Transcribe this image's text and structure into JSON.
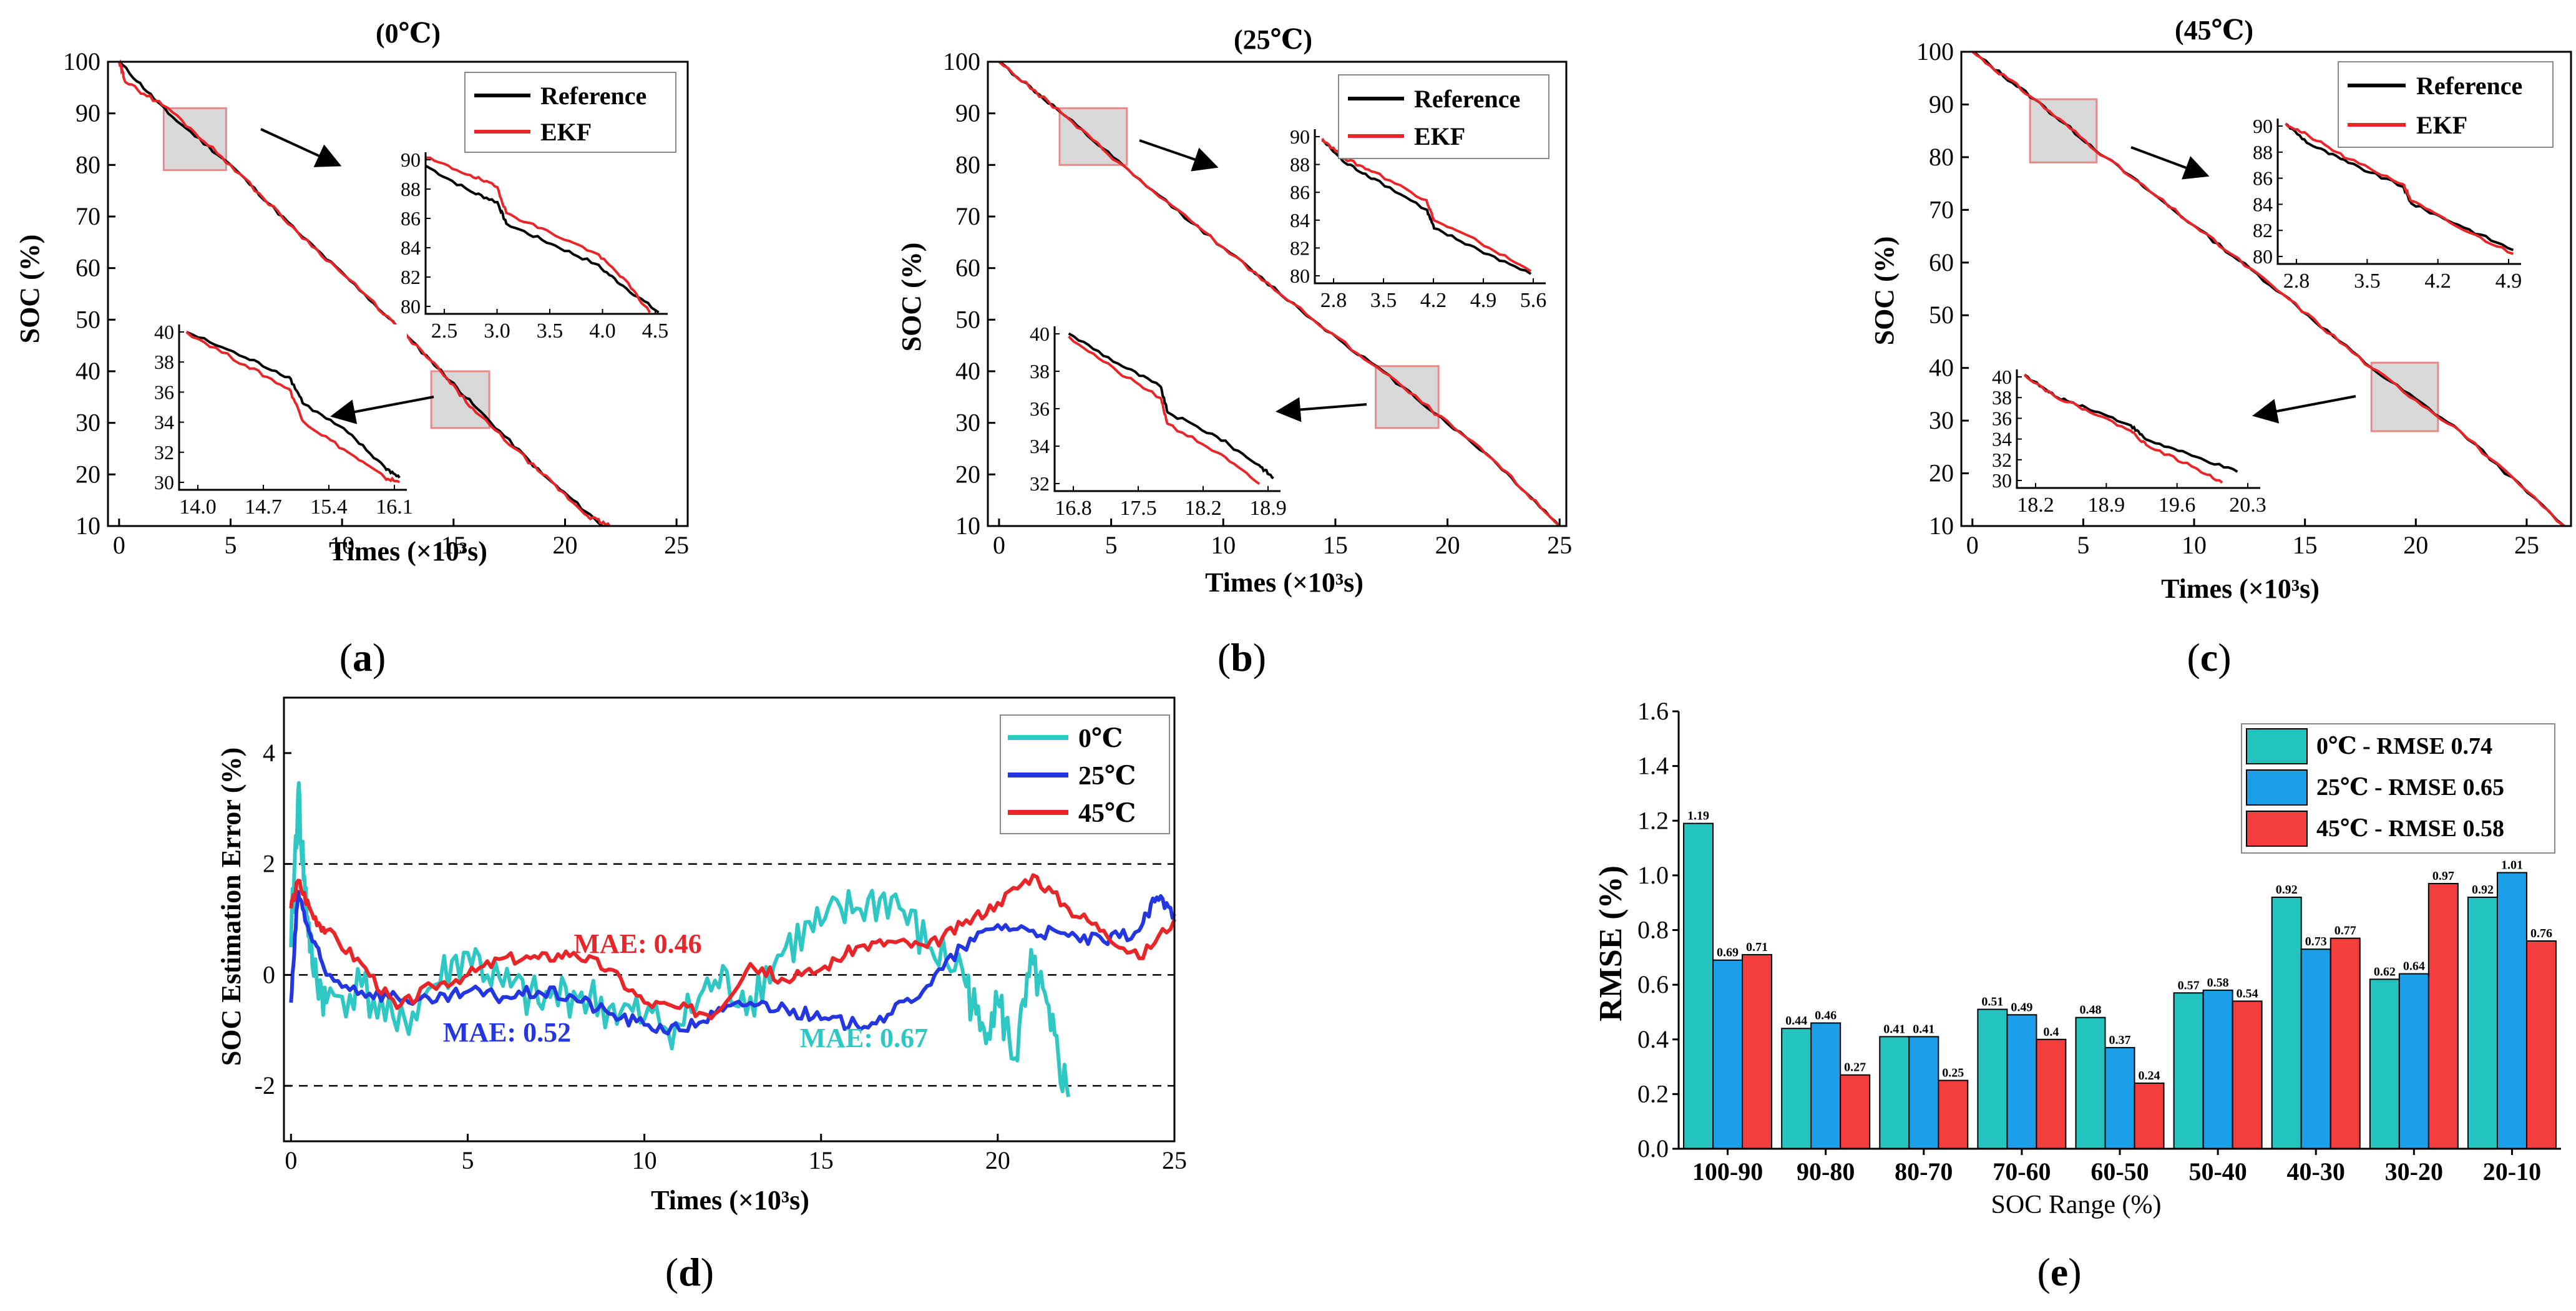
{
  "colors": {
    "reference": "#000000",
    "ekf": "#e8262a",
    "zero": "#2fc7c4",
    "twentyfive": "#2436e0",
    "fortyfive": "#e8262a",
    "bar0": "#25c3c0",
    "bar25": "#1a9fe8",
    "bar45": "#f43d3d",
    "box_fill": "#d8d8d8",
    "box_stroke": "#e88a8a"
  },
  "panels": {
    "a": {
      "label_open": "(",
      "letter": "a",
      "label_close": ")"
    },
    "b": {
      "label_open": "(",
      "letter": "b",
      "label_close": ")"
    },
    "c": {
      "label_open": "(",
      "letter": "c",
      "label_close": ")"
    },
    "d": {
      "label_open": "(",
      "letter": "d",
      "label_close": ")"
    },
    "e": {
      "label_open": "(",
      "letter": "e",
      "label_close": ")"
    }
  },
  "chart_data": [
    {
      "id": "a",
      "type": "line",
      "title": "(0℃)",
      "xlabel": "Times (×10³s)",
      "ylabel": "SOC (%)",
      "xlim": [
        -0.5,
        25.5
      ],
      "ylim": [
        10,
        100
      ],
      "xticks": [
        0,
        5,
        10,
        15,
        20,
        25
      ],
      "yticks": [
        10,
        20,
        30,
        40,
        50,
        60,
        70,
        80,
        90,
        100
      ],
      "series": [
        {
          "name": "Reference",
          "x": [
            0,
            2.2,
            5,
            8,
            11,
            14,
            16,
            19,
            21.7
          ],
          "y": [
            100,
            90,
            80,
            67,
            55,
            42,
            33,
            20,
            10
          ]
        },
        {
          "name": "EKF",
          "x": [
            0,
            0.3,
            2.2,
            5,
            8,
            11,
            14,
            16,
            19,
            21,
            22
          ],
          "y": [
            100,
            96,
            91,
            80,
            67,
            55,
            42,
            32,
            20,
            12,
            10
          ]
        }
      ],
      "zoom_boxes": [
        {
          "x": [
            2.0,
            4.8
          ],
          "y": [
            79,
            91
          ]
        },
        {
          "x": [
            14.0,
            16.6
          ],
          "y": [
            29,
            40
          ]
        }
      ],
      "insets": [
        {
          "xticks": [
            "2.5",
            "3.0",
            "3.5",
            "4.0",
            "4.5"
          ],
          "yticks": [
            "80",
            "82",
            "84",
            "86",
            "88",
            "90"
          ],
          "xlim": [
            2.1,
            4.8
          ],
          "ylim": [
            79.5,
            91.5
          ],
          "ref": {
            "x": [
              2.1,
              2.6,
              2.9,
              3.0,
              3.5,
              4.0,
              4.3,
              4.7
            ],
            "y": [
              90.5,
              88.6,
              87.8,
              86.2,
              84.7,
              83.2,
              81.6,
              79.6
            ]
          },
          "ekf": {
            "x": [
              2.1,
              2.6,
              2.9,
              3.0,
              3.5,
              4.0,
              4.3,
              4.6
            ],
            "y": [
              91.1,
              89.8,
              88.9,
              87.0,
              85.5,
              84.0,
              82.2,
              79.6
            ]
          }
        },
        {
          "xticks": [
            "14.0",
            "14.7",
            "15.4",
            "16.1"
          ],
          "yticks": [
            "30",
            "32",
            "34",
            "36",
            "38",
            "40"
          ],
          "xlim": [
            13.8,
            16.9
          ],
          "ylim": [
            29.5,
            40.5
          ],
          "ref": {
            "x": [
              13.9,
              14.7,
              15.3,
              15.5,
              16.1,
              16.6,
              16.8
            ],
            "y": [
              40.0,
              38.3,
              37.0,
              35.2,
              33.3,
              31.0,
              30.3
            ]
          },
          "ekf": {
            "x": [
              13.9,
              14.7,
              15.3,
              15.5,
              16.1,
              16.6,
              16.8
            ],
            "y": [
              40.0,
              37.8,
              36.2,
              34.0,
              32.0,
              30.3,
              30.0
            ]
          }
        }
      ]
    },
    {
      "id": "b",
      "type": "line",
      "title": "(25℃)",
      "xlabel": "Times (×10³s)",
      "ylabel": "SOC (%)",
      "xlim": [
        -0.5,
        25.3
      ],
      "ylim": [
        10,
        100
      ],
      "xticks": [
        0,
        5,
        10,
        15,
        20,
        25
      ],
      "yticks": [
        10,
        20,
        30,
        40,
        50,
        60,
        70,
        80,
        90,
        100
      ],
      "series": [
        {
          "name": "Reference",
          "x": [
            0,
            2.8,
            6,
            10,
            14,
            18,
            22,
            25
          ],
          "y": [
            100,
            90,
            78,
            64,
            50,
            37,
            23,
            10
          ]
        },
        {
          "name": "EKF",
          "x": [
            0,
            2.8,
            6,
            10,
            14,
            18,
            22,
            25
          ],
          "y": [
            100,
            90,
            78,
            64,
            50,
            37,
            23,
            10
          ]
        }
      ],
      "zoom_boxes": [
        {
          "x": [
            2.7,
            5.7
          ],
          "y": [
            80,
            91
          ]
        },
        {
          "x": [
            16.8,
            19.6
          ],
          "y": [
            29,
            41
          ]
        }
      ],
      "insets": [
        {
          "xticks": [
            "2.8",
            "3.5",
            "4.2",
            "4.9",
            "5.6"
          ],
          "yticks": [
            "80",
            "82",
            "84",
            "86",
            "88",
            "90"
          ],
          "xlim": [
            2.7,
            5.8
          ],
          "ylim": [
            79.5,
            91
          ],
          "ref": {
            "x": [
              2.8,
              3.1,
              3.5,
              4.2,
              4.3,
              4.9,
              5.6
            ],
            "y": [
              90.2,
              88.5,
              87.3,
              85.0,
              83.6,
              82.0,
              80.2
            ]
          },
          "ekf": {
            "x": [
              2.8,
              3.1,
              3.5,
              4.2,
              4.3,
              4.9,
              5.6
            ],
            "y": [
              90.3,
              88.8,
              87.8,
              85.7,
              84.2,
              82.6,
              80.4
            ]
          }
        },
        {
          "xticks": [
            "16.8",
            "17.5",
            "18.2",
            "18.9"
          ],
          "yticks": [
            "32",
            "34",
            "36",
            "38",
            "40"
          ],
          "xlim": [
            16.6,
            19.8
          ],
          "ylim": [
            29.5,
            41
          ],
          "ref": {
            "x": [
              16.8,
              17.5,
              18.1,
              18.2,
              18.9,
              19.5,
              19.7
            ],
            "y": [
              40.5,
              38.4,
              36.8,
              35.0,
              33.3,
              31.3,
              30.4
            ]
          },
          "ekf": {
            "x": [
              16.8,
              17.5,
              18.1,
              18.2,
              18.9,
              19.5
            ],
            "y": [
              40.3,
              37.8,
              36.0,
              34.2,
              32.2,
              30.0
            ]
          }
        }
      ]
    },
    {
      "id": "c",
      "type": "line",
      "title": "(45℃)",
      "xlabel": "Times (×10³s)",
      "ylabel": "SOC (%)",
      "xlim": [
        -0.5,
        27
      ],
      "ylim": [
        10,
        100
      ],
      "xticks": [
        0,
        5,
        10,
        15,
        20,
        25
      ],
      "yticks": [
        10,
        20,
        30,
        40,
        50,
        60,
        70,
        80,
        90,
        100
      ],
      "series": [
        {
          "name": "Reference",
          "x": [
            0,
            2.8,
            6,
            10,
            14,
            18,
            22,
            26.7
          ],
          "y": [
            100,
            91,
            80,
            67,
            54,
            40,
            28,
            10
          ]
        },
        {
          "name": "EKF",
          "x": [
            0,
            2.8,
            6,
            10,
            14,
            18,
            22,
            26.7
          ],
          "y": [
            100,
            91,
            80,
            67,
            54,
            40,
            28,
            10
          ]
        }
      ],
      "zoom_boxes": [
        {
          "x": [
            2.6,
            5.6
          ],
          "y": [
            79,
            91
          ]
        },
        {
          "x": [
            18.0,
            21.0
          ],
          "y": [
            28,
            41
          ]
        }
      ],
      "insets": [
        {
          "xticks": [
            "2.8",
            "3.5",
            "4.2",
            "4.9"
          ],
          "yticks": [
            "80",
            "82",
            "84",
            "86",
            "88",
            "90"
          ],
          "xlim": [
            2.6,
            5.7
          ],
          "ylim": [
            79.5,
            91
          ],
          "ref": {
            "x": [
              2.7,
              3.0,
              3.5,
              4.2,
              4.3,
              4.9,
              5.6
            ],
            "y": [
              90.6,
              89.0,
              87.5,
              85.6,
              84.3,
              82.6,
              80.6
            ]
          },
          "ekf": {
            "x": [
              2.7,
              3.0,
              3.5,
              4.2,
              4.3,
              4.9,
              5.6
            ],
            "y": [
              90.6,
              89.6,
              87.8,
              85.8,
              84.5,
              82.4,
              80.3
            ]
          }
        },
        {
          "xticks": [
            "18.2",
            "18.9",
            "19.6",
            "20.3"
          ],
          "yticks": [
            "30",
            "32",
            "34",
            "36",
            "38",
            "40"
          ],
          "xlim": [
            18.0,
            21.2
          ],
          "ylim": [
            29.5,
            40.5
          ],
          "ref": {
            "x": [
              18.1,
              18.5,
              18.9,
              19.5,
              19.7,
              20.3,
              20.9
            ],
            "y": [
              40.0,
              38.0,
              37.0,
              35.3,
              34.0,
              32.5,
              31.0
            ]
          },
          "ekf": {
            "x": [
              18.1,
              18.5,
              18.9,
              19.5,
              19.7,
              20.3,
              20.7
            ],
            "y": [
              40.0,
              38.0,
              36.8,
              34.8,
              33.5,
              31.5,
              30.0
            ]
          }
        }
      ]
    },
    {
      "id": "d",
      "type": "line",
      "xlabel": "Times (×10³s)",
      "ylabel": "SOC Estimation Error (%)",
      "xlim": [
        -0.2,
        25
      ],
      "ylim": [
        -3,
        5
      ],
      "xticks": [
        0,
        5,
        10,
        15,
        20,
        25
      ],
      "yticks": [
        -2,
        0,
        2,
        4
      ],
      "reference_lines": [
        2,
        0,
        -2
      ],
      "series": [
        {
          "name": "0℃",
          "x": [
            0,
            0.2,
            0.4,
            0.6,
            1,
            2,
            3,
            4,
            5,
            6,
            7,
            8,
            9,
            10,
            11,
            12,
            13,
            14,
            15,
            16,
            17,
            18,
            19,
            19.5,
            20,
            20.5,
            21,
            21.5,
            22
          ],
          "y": [
            0.5,
            3.3,
            1.5,
            0.2,
            -0.5,
            -0.2,
            -1.0,
            -0.2,
            0.4,
            -0.2,
            -0.5,
            -0.3,
            -0.6,
            -0.8,
            -0.9,
            -0.1,
            -0.4,
            0.5,
            0.9,
            1.2,
            1.4,
            0.5,
            0.1,
            -1.0,
            -0.5,
            -1.5,
            0.2,
            -1.0,
            -2.2
          ]
        },
        {
          "name": "25℃",
          "x": [
            0,
            0.2,
            0.5,
            1,
            2,
            3,
            4,
            5,
            6,
            7,
            8,
            9,
            10,
            11,
            12,
            13,
            14,
            15,
            16,
            17,
            18,
            19,
            20,
            21,
            22,
            23,
            24,
            24.5,
            25
          ],
          "y": [
            -0.5,
            1.5,
            0.8,
            0.0,
            -0.3,
            -0.4,
            -0.5,
            -0.3,
            -0.4,
            -0.3,
            -0.4,
            -0.7,
            -0.9,
            -1.0,
            -0.7,
            -0.5,
            -0.6,
            -0.8,
            -0.9,
            -0.7,
            -0.2,
            0.5,
            0.9,
            0.8,
            0.7,
            0.6,
            0.8,
            1.4,
            1.1
          ]
        },
        {
          "name": "45℃",
          "x": [
            0,
            0.2,
            0.6,
            1,
            2,
            3,
            4,
            5,
            6,
            7,
            8,
            9,
            10,
            11,
            12,
            13,
            14,
            15,
            16,
            17,
            18,
            19,
            20,
            21,
            22,
            23,
            24,
            25
          ],
          "y": [
            1.2,
            1.7,
            1.1,
            0.8,
            0.2,
            -0.6,
            -0.2,
            0.0,
            0.3,
            0.3,
            0.4,
            0.1,
            -0.5,
            -0.6,
            -0.7,
            0.2,
            -0.1,
            0.1,
            0.5,
            0.6,
            0.5,
            0.9,
            1.3,
            1.8,
            1.2,
            0.8,
            0.3,
            1.0
          ]
        }
      ],
      "annotations": [
        {
          "text": "MAE: 0.46",
          "x": 8,
          "y": 0.4,
          "series": "45℃"
        },
        {
          "text": "MAE: 0.52",
          "x": 4.3,
          "y": -1.2,
          "series": "25℃"
        },
        {
          "text": "MAE: 0.67",
          "x": 14.4,
          "y": -1.3,
          "series": "0℃"
        }
      ],
      "legend": "top-right"
    },
    {
      "id": "e",
      "type": "bar",
      "xlabel": "SOC Range (%)",
      "ylabel": "RMSE (%)",
      "ylim": [
        0,
        1.6
      ],
      "yticks": [
        0.0,
        0.2,
        0.4,
        0.6,
        0.8,
        1.0,
        1.2,
        1.4,
        1.6
      ],
      "ytick_labels": [
        "0.0",
        "0.2",
        "0.4",
        "0.6",
        "0.8",
        "1.0",
        "1.2",
        "1.4",
        "1.6"
      ],
      "categories": [
        "100-90",
        "90-80",
        "80-70",
        "70-60",
        "60-50",
        "50-40",
        "40-30",
        "30-20",
        "20-10"
      ],
      "series": [
        {
          "name": "0℃ - RMSE 0.74",
          "values": [
            1.19,
            0.44,
            0.41,
            0.51,
            0.48,
            0.57,
            0.92,
            0.62,
            0.92
          ],
          "labels": [
            "1.19",
            "0.44",
            "0.41",
            "0.51",
            "0.48",
            "0.57",
            "0.92",
            "0.62",
            "0.92"
          ]
        },
        {
          "name": "25℃ - RMSE 0.65",
          "values": [
            0.69,
            0.46,
            0.41,
            0.49,
            0.37,
            0.58,
            0.73,
            0.64,
            1.01
          ],
          "labels": [
            "0.69",
            "0.46",
            "0.41",
            "0.49",
            "0.37",
            "0.58",
            "0.73",
            "0.64",
            "1.01"
          ]
        },
        {
          "name": "45℃ - RMSE 0.58",
          "values": [
            0.71,
            0.27,
            0.25,
            0.4,
            0.24,
            0.54,
            0.77,
            0.97,
            0.76
          ],
          "labels": [
            "0.71",
            "0.27",
            "0.25",
            "0.4",
            "0.24",
            "0.54",
            "0.77",
            "0.97",
            "0.76"
          ]
        }
      ],
      "legend": "top-right"
    }
  ]
}
